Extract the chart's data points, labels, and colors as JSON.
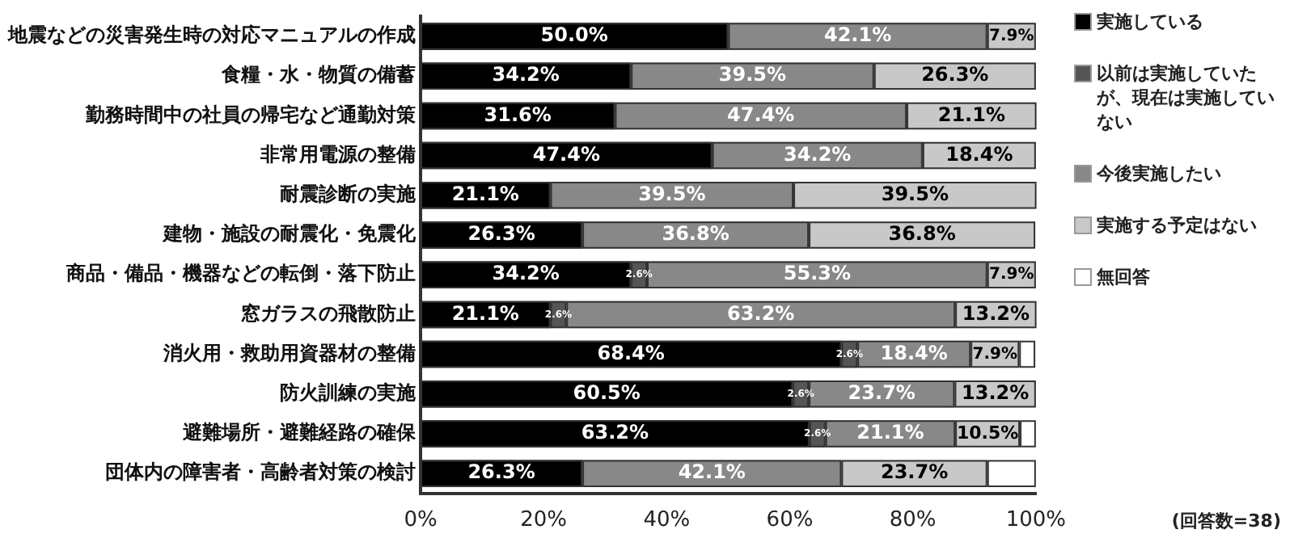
{
  "chart_data": {
    "type": "bar",
    "orientation": "horizontal",
    "stacked": true,
    "grid": false,
    "legend": "right",
    "categories": [
      "地震などの災害発生時の対応マニュアルの作成",
      "食糧・水・物質の備蓄",
      "勤務時間中の社員の帰宅など通勤対策",
      "非常用電源の整備",
      "耐震診断の実施",
      "建物・施設の耐震化・免震化",
      "商品・備品・機器などの転倒・落下防止",
      "窓ガラスの飛散防止",
      "消火用・救助用資器材の整備",
      "防火訓練の実施",
      "避難場所・避難経路の確保",
      "団体内の障害者・高齢者対策の検討"
    ],
    "series": [
      {
        "name": "実施している",
        "color": "#000000",
        "values": [
          50.0,
          34.2,
          31.6,
          47.4,
          21.1,
          26.3,
          34.2,
          21.1,
          68.4,
          60.5,
          63.2,
          26.3
        ],
        "value_labels": [
          "50.0%",
          "34.2%",
          "31.6%",
          "47.4%",
          "21.1%",
          "26.3%",
          "34.2%",
          "21.1%",
          "68.4%",
          "60.5%",
          "63.2%",
          "26.3%"
        ]
      },
      {
        "name": "以前は実施していたが、現在は実施していない",
        "color": "#555555",
        "values": [
          0,
          0,
          0,
          0,
          0,
          0,
          2.6,
          2.6,
          2.6,
          2.6,
          2.6,
          0
        ],
        "value_labels": [
          null,
          null,
          null,
          null,
          null,
          null,
          "2.6%",
          "2.6%",
          "2.6%",
          "2.6%",
          "2.6%",
          null
        ]
      },
      {
        "name": "今後実施したい",
        "color": "#888888",
        "values": [
          42.1,
          39.5,
          47.4,
          34.2,
          39.5,
          36.8,
          55.3,
          63.2,
          18.4,
          23.7,
          21.1,
          42.1
        ],
        "value_labels": [
          "42.1%",
          "39.5%",
          "47.4%",
          "34.2%",
          "39.5%",
          "36.8%",
          "55.3%",
          "63.2%",
          "18.4%",
          "23.7%",
          "21.1%",
          "42.1%"
        ]
      },
      {
        "name": "実施する予定はない",
        "color": "#c8c8c8",
        "values": [
          7.9,
          26.3,
          21.1,
          18.4,
          39.5,
          36.8,
          7.9,
          13.2,
          7.9,
          13.2,
          10.5,
          23.7
        ],
        "value_labels": [
          "7.9%",
          "26.3%",
          "21.1%",
          "18.4%",
          "39.5%",
          "36.8%",
          "7.9%",
          "13.2%",
          "7.9%",
          "13.2%",
          "10.5%",
          "23.7%"
        ]
      },
      {
        "name": "無回答",
        "color": "#ffffff",
        "values": [
          0,
          0,
          0,
          0,
          0,
          0,
          0,
          0,
          2.6,
          0,
          2.6,
          7.9
        ],
        "value_labels": [
          null,
          null,
          null,
          null,
          null,
          null,
          null,
          null,
          null,
          null,
          null,
          null
        ]
      }
    ],
    "xlim": [
      0,
      100
    ],
    "xticks": [
      {
        "value": 0,
        "label": "0%"
      },
      {
        "value": 20,
        "label": "20%"
      },
      {
        "value": 40,
        "label": "40%"
      },
      {
        "value": 60,
        "label": "60%"
      },
      {
        "value": 80,
        "label": "80%"
      },
      {
        "value": 100,
        "label": "100%"
      }
    ],
    "annotations": [
      "(回答数=38)"
    ]
  }
}
